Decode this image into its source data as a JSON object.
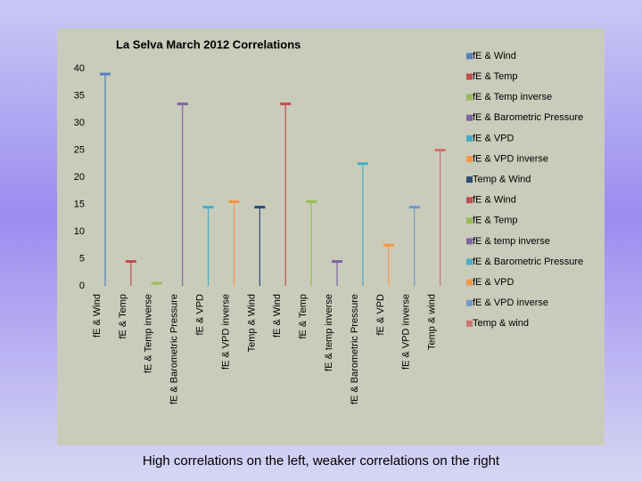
{
  "chart_data": {
    "type": "dropline",
    "title": "La Selva March 2012 Correlations",
    "caption": "High correlations on the left, weaker correlations on the right",
    "categories": [
      "fE & Wind",
      "fE & Temp",
      "fE & Temp inverse",
      "fE & Barometric Pressure",
      "fE & VPD",
      "fE & VPD inverse",
      "Temp & Wind",
      "fE & Wind",
      "fE & Temp",
      "fE & temp inverse",
      "fE & Barometric Pressure",
      "fE & VPD",
      "fE & VPD  inverse",
      "Temp & wind"
    ],
    "values": [
      39,
      4.5,
      0.5,
      33.5,
      14.5,
      15.5,
      14.5,
      33.5,
      15.5,
      4.5,
      22.5,
      7.5,
      14.5,
      25
    ],
    "colors": [
      "#4f81bd",
      "#c0504d",
      "#9bbb59",
      "#8064a2",
      "#4bacc6",
      "#f79646",
      "#2c4d75",
      "#c0504d",
      "#9bbb59",
      "#8064a2",
      "#4bacc6",
      "#f79646",
      "#729aca",
      "#cd7371"
    ],
    "ylim": [
      0,
      40
    ],
    "yticks": [
      0,
      5,
      10,
      15,
      20,
      25,
      30,
      35,
      40
    ]
  }
}
